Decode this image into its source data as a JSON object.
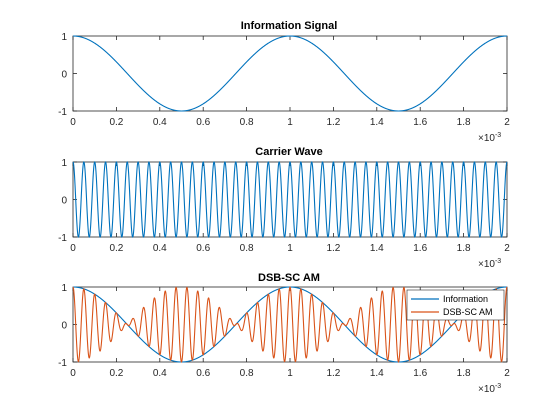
{
  "chart_data": [
    {
      "type": "line",
      "title": "Information Signal",
      "xlim": [
        0,
        0.002
      ],
      "ylim": [
        -1,
        1
      ],
      "x_tick_labels": [
        "0",
        "0.2",
        "0.4",
        "0.6",
        "0.8",
        "1",
        "1.2",
        "1.4",
        "1.6",
        "1.8",
        "2"
      ],
      "y_tick_labels": [
        "1",
        "0",
        "-1"
      ],
      "x_multiplier": {
        "base": "×10",
        "exponent": "-3"
      },
      "series": [
        {
          "color": "#0072BD",
          "function": "cos",
          "frequency_hz": 1000,
          "samples_x": [
            0,
            0.00025,
            0.0005,
            0.00075,
            0.001,
            0.00125,
            0.0015,
            0.00175,
            0.002
          ],
          "samples_y": [
            1,
            0,
            -1,
            0,
            1,
            0,
            -1,
            0,
            1
          ]
        }
      ],
      "grid": false,
      "legend": null
    },
    {
      "type": "line",
      "title": "Carrier Wave",
      "xlim": [
        0,
        0.002
      ],
      "ylim": [
        -1,
        1
      ],
      "x_tick_labels": [
        "0",
        "0.2",
        "0.4",
        "0.6",
        "0.8",
        "1",
        "1.2",
        "1.4",
        "1.6",
        "1.8",
        "2"
      ],
      "y_tick_labels": [
        "1",
        "0",
        "-1"
      ],
      "x_multiplier": {
        "base": "×10",
        "exponent": "-3"
      },
      "series": [
        {
          "color": "#0072BD",
          "function": "cos",
          "frequency_hz": 20000,
          "samples_x": [
            0,
            2.5e-05,
            5e-05
          ],
          "samples_y": [
            1,
            -1,
            1
          ]
        }
      ],
      "grid": false,
      "legend": null
    },
    {
      "type": "line",
      "title": "DSB-SC AM",
      "xlim": [
        0,
        0.002
      ],
      "ylim": [
        -1,
        1
      ],
      "x_tick_labels": [
        "0",
        "0.2",
        "0.4",
        "0.6",
        "0.8",
        "1",
        "1.2",
        "1.4",
        "1.6",
        "1.8",
        "2"
      ],
      "y_tick_labels": [
        "1",
        "0",
        "-1"
      ],
      "x_multiplier": {
        "base": "×10",
        "exponent": "-3"
      },
      "series": [
        {
          "name": "Information",
          "color": "#0072BD",
          "function": "cos",
          "frequency_hz": 1000,
          "samples_x": [
            0,
            0.0005,
            0.001,
            0.0015,
            0.002
          ],
          "samples_y": [
            1,
            -1,
            1,
            -1,
            1
          ]
        },
        {
          "name": "DSB-SC AM",
          "color": "#D95319",
          "function": "product",
          "information_frequency_hz": 1000,
          "carrier_frequency_hz": 20000,
          "samples_x": [
            0,
            0.0005,
            0.001,
            0.0015,
            0.002
          ],
          "samples_y": [
            1,
            -1,
            1,
            -1,
            1
          ]
        }
      ],
      "grid": false,
      "legend": {
        "position": "top-right",
        "entries": [
          "Information",
          "DSB-SC AM"
        ]
      }
    }
  ]
}
